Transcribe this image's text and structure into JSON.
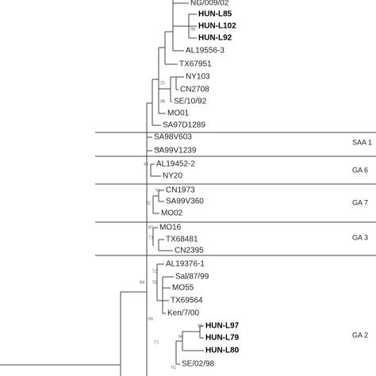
{
  "leaves": [
    {
      "label": "NG/009/02"
    },
    {
      "label": "HUN-L85",
      "bold": true
    },
    {
      "label": "HUN-L102",
      "bold": true
    },
    {
      "label": "HUN-L92",
      "bold": true
    },
    {
      "label": "AL19556-3"
    },
    {
      "label": "TX67951"
    },
    {
      "label": "NY103"
    },
    {
      "label": "CN2708"
    },
    {
      "label": "SE/10/92"
    },
    {
      "label": "MO01"
    },
    {
      "label": "SA97D1289"
    },
    {
      "label": "SA98V603"
    },
    {
      "label": "SA99V1239"
    },
    {
      "label": "AL19452-2"
    },
    {
      "label": "NY20"
    },
    {
      "label": "CN1973"
    },
    {
      "label": "SA99V360"
    },
    {
      "label": "MO02"
    },
    {
      "label": "MO16"
    },
    {
      "label": "TX68481"
    },
    {
      "label": "CN2395"
    },
    {
      "label": "AL19376-1"
    },
    {
      "label": "Sal/87/99"
    },
    {
      "label": "MO55"
    },
    {
      "label": "TX69564"
    },
    {
      "label": "Ken/7/00"
    },
    {
      "label": "HUN-L97",
      "bold": true
    },
    {
      "label": "HUN-L79",
      "bold": true
    },
    {
      "label": "HUN-L80",
      "bold": true
    },
    {
      "label": "SE/02/98"
    }
  ],
  "groups": [
    "SAA 1",
    "GA 6",
    "GA 7",
    "GA 3",
    "GA 2"
  ],
  "bootstrap": [
    "99",
    "55",
    "98",
    "96",
    "43",
    "93",
    "92",
    "87",
    "73",
    "52",
    "50",
    "84",
    "66",
    "99",
    "99",
    "73",
    "62"
  ]
}
